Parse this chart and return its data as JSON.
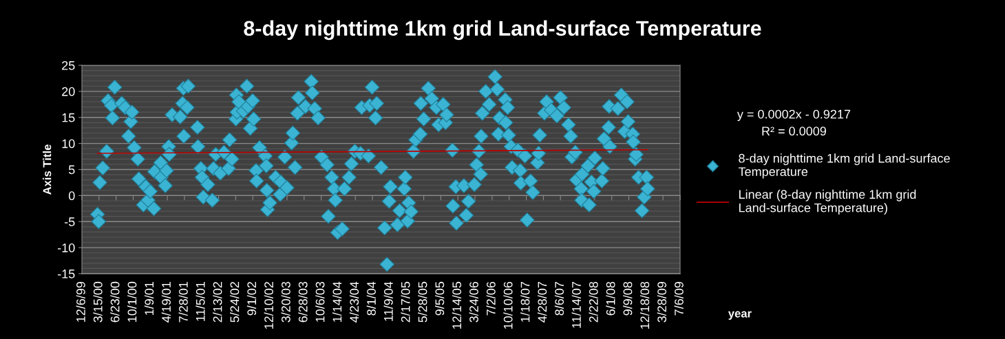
{
  "chart_data": {
    "type": "scatter",
    "title": "8-day nighttime 1km grid Land-surface Temperature",
    "xlabel": "year",
    "ylabel": "Axis Title",
    "annotations": [
      "y = 0.0002x - 0.9217",
      "R² = 0.0009"
    ],
    "xlim": [
      "1999-12-06",
      "2009-07-06"
    ],
    "xticks": [
      {
        "value": "1999-12-06",
        "label": "12/6/99"
      },
      {
        "value": "2000-03-15",
        "label": "3/15/00"
      },
      {
        "value": "2000-06-23",
        "label": "6/23/00"
      },
      {
        "value": "2000-10-01",
        "label": "10/1/00"
      },
      {
        "value": "2001-01-09",
        "label": "1/9/01"
      },
      {
        "value": "2001-04-19",
        "label": "4/19/01"
      },
      {
        "value": "2001-07-28",
        "label": "7/28/01"
      },
      {
        "value": "2001-11-05",
        "label": "11/5/01"
      },
      {
        "value": "2002-02-13",
        "label": "2/13/02"
      },
      {
        "value": "2002-05-24",
        "label": "5/24/02"
      },
      {
        "value": "2002-09-01",
        "label": "9/1/02"
      },
      {
        "value": "2002-12-10",
        "label": "12/10/02"
      },
      {
        "value": "2003-03-20",
        "label": "3/20/03"
      },
      {
        "value": "2003-06-28",
        "label": "6/28/03"
      },
      {
        "value": "2003-10-06",
        "label": "10/6/03"
      },
      {
        "value": "2004-01-14",
        "label": "1/14/04"
      },
      {
        "value": "2004-04-23",
        "label": "4/23/04"
      },
      {
        "value": "2004-08-01",
        "label": "8/1/04"
      },
      {
        "value": "2004-11-09",
        "label": "11/9/04"
      },
      {
        "value": "2005-02-17",
        "label": "2/17/05"
      },
      {
        "value": "2005-05-28",
        "label": "5/28/05"
      },
      {
        "value": "2005-09-05",
        "label": "9/5/05"
      },
      {
        "value": "2005-12-14",
        "label": "12/14/05"
      },
      {
        "value": "2006-03-24",
        "label": "3/24/06"
      },
      {
        "value": "2006-07-02",
        "label": "7/2/06"
      },
      {
        "value": "2006-10-10",
        "label": "10/10/06"
      },
      {
        "value": "2007-01-18",
        "label": "1/18/07"
      },
      {
        "value": "2007-04-28",
        "label": "4/28/07"
      },
      {
        "value": "2007-08-06",
        "label": "8/6/07"
      },
      {
        "value": "2007-11-14",
        "label": "11/14/07"
      },
      {
        "value": "2008-02-22",
        "label": "2/22/08"
      },
      {
        "value": "2008-06-01",
        "label": "6/1/08"
      },
      {
        "value": "2008-09-09",
        "label": "9/9/08"
      },
      {
        "value": "2008-12-18",
        "label": "12/18/08"
      },
      {
        "value": "2009-03-28",
        "label": "3/28/09"
      },
      {
        "value": "2009-07-06",
        "label": "7/6/09"
      }
    ],
    "ylim": [
      -15,
      25
    ],
    "yticks": [
      -15,
      -10,
      -5,
      0,
      5,
      10,
      15,
      20,
      25
    ],
    "grid": "y",
    "legend": "right",
    "series": [
      {
        "name": "8-day nighttime 1km grid Land-surface Temperature",
        "marker": "diamond",
        "color": "#3bb3d3",
        "x": [
          "2000-03-06",
          "2000-03-13",
          "2000-03-20",
          "2000-04-06",
          "2000-04-29",
          "2000-05-07",
          "2000-05-26",
          "2000-06-02",
          "2000-06-15",
          "2000-07-26",
          "2000-08-15",
          "2000-09-04",
          "2000-09-17",
          "2000-09-24",
          "2000-10-07",
          "2000-10-28",
          "2000-11-03",
          "2000-11-30",
          "2000-12-14",
          "2000-12-27",
          "2001-01-09",
          "2001-01-30",
          "2001-02-03",
          "2001-03-11",
          "2001-03-14",
          "2001-04-07",
          "2001-04-14",
          "2001-04-27",
          "2001-04-30",
          "2001-05-17",
          "2001-07-03",
          "2001-07-17",
          "2001-07-22",
          "2001-07-24",
          "2001-08-13",
          "2001-08-19",
          "2001-10-12",
          "2001-10-15",
          "2001-11-01",
          "2001-11-08",
          "2001-11-15",
          "2001-12-12",
          "2002-01-07",
          "2002-01-14",
          "2002-01-27",
          "2002-02-23",
          "2002-03-16",
          "2002-04-12",
          "2002-04-18",
          "2002-05-02",
          "2002-05-25",
          "2002-05-28",
          "2002-05-31",
          "2002-06-11",
          "2002-07-08",
          "2002-07-28",
          "2002-08-04",
          "2002-08-17",
          "2002-08-31",
          "2002-09-06",
          "2002-09-20",
          "2002-09-23",
          "2002-10-10",
          "2002-11-13",
          "2002-11-19",
          "2002-11-22",
          "2002-11-26",
          "2002-12-10",
          "2003-01-12",
          "2003-02-08",
          "2003-02-11",
          "2003-03-07",
          "2003-03-20",
          "2003-04-16",
          "2003-04-23",
          "2003-05-06",
          "2003-05-20",
          "2003-05-26",
          "2003-07-06",
          "2003-08-09",
          "2003-08-15",
          "2003-08-29",
          "2003-09-18",
          "2003-10-08",
          "2003-11-10",
          "2003-11-17",
          "2003-12-07",
          "2003-12-21",
          "2003-12-28",
          "2004-01-10",
          "2004-02-06",
          "2004-02-19",
          "2004-03-17",
          "2004-03-31",
          "2004-04-20",
          "2004-05-23",
          "2004-05-30",
          "2004-07-09",
          "2004-07-16",
          "2004-07-30",
          "2004-08-19",
          "2004-08-26",
          "2004-09-21",
          "2004-10-11",
          "2004-10-25",
          "2004-11-07",
          "2004-11-14",
          "2004-12-25",
          "2005-01-07",
          "2005-02-03",
          "2005-02-09",
          "2005-02-23",
          "2005-03-01",
          "2005-03-15",
          "2005-03-29",
          "2005-04-11",
          "2005-05-08",
          "2005-05-11",
          "2005-05-28",
          "2005-06-24",
          "2005-07-14",
          "2005-08-10",
          "2005-08-23",
          "2005-09-19",
          "2005-10-03",
          "2005-10-09",
          "2005-11-12",
          "2005-11-15",
          "2005-12-02",
          "2005-12-05",
          "2006-01-18",
          "2006-02-01",
          "2006-02-14",
          "2006-03-20",
          "2006-04-02",
          "2006-04-16",
          "2006-04-26",
          "2006-04-29",
          "2006-05-06",
          "2006-05-26",
          "2006-06-15",
          "2006-07-19",
          "2006-08-01",
          "2006-08-08",
          "2006-08-15",
          "2006-09-17",
          "2006-09-20",
          "2006-10-01",
          "2006-10-07",
          "2006-10-21",
          "2006-10-27",
          "2006-11-30",
          "2006-12-14",
          "2006-12-17",
          "2007-01-10",
          "2007-01-23",
          "2007-02-12",
          "2007-02-25",
          "2007-03-24",
          "2007-03-31",
          "2007-04-07",
          "2007-05-04",
          "2007-05-17",
          "2007-06-13",
          "2007-07-16",
          "2007-08-06",
          "2007-08-26",
          "2007-09-22",
          "2007-10-05",
          "2007-10-12",
          "2007-11-01",
          "2007-11-08",
          "2007-12-05",
          "2007-12-08",
          "2007-12-11",
          "2008-01-14",
          "2008-01-21",
          "2008-02-03",
          "2008-02-17",
          "2008-02-23",
          "2008-04-04",
          "2008-04-10",
          "2008-04-17",
          "2008-05-14",
          "2008-05-17",
          "2008-05-21",
          "2008-07-07",
          "2008-07-27",
          "2008-08-16",
          "2008-08-30",
          "2008-09-05",
          "2008-10-02",
          "2008-10-05",
          "2008-10-16",
          "2008-10-22",
          "2008-11-05",
          "2008-11-25",
          "2008-12-08",
          "2008-12-22",
          "2008-12-28"
        ],
        "values": [
          -3.6,
          -5.0,
          2.5,
          5.3,
          8.5,
          18.2,
          17.3,
          14.9,
          20.8,
          17.7,
          16.9,
          11.4,
          14.2,
          16.0,
          9.2,
          7.0,
          3.2,
          -1.8,
          1.7,
          -0.9,
          0.8,
          -2.5,
          4.6,
          6.3,
          3.5,
          1.9,
          4.8,
          9.4,
          7.9,
          15.5,
          15.1,
          17.7,
          20.6,
          11.4,
          16.9,
          21.0,
          13.1,
          9.4,
          5.2,
          3.5,
          -0.3,
          2.1,
          -0.9,
          5.2,
          7.9,
          4.3,
          8.3,
          5.2,
          10.7,
          7.0,
          14.7,
          19.3,
          16.0,
          18.0,
          16.2,
          21.0,
          17.1,
          12.9,
          18.2,
          14.7,
          4.8,
          2.8,
          9.2,
          7.6,
          5.7,
          1.0,
          -2.7,
          -1.4,
          3.5,
          0.2,
          2.6,
          7.4,
          1.5,
          10.1,
          12.0,
          5.4,
          15.8,
          18.8,
          17.1,
          21.9,
          19.7,
          16.7,
          14.9,
          7.4,
          5.9,
          -4.0,
          3.5,
          1.3,
          -0.9,
          -7.1,
          -6.4,
          1.3,
          3.5,
          6.1,
          8.5,
          8.1,
          16.9,
          7.6,
          17.3,
          20.8,
          14.9,
          17.7,
          5.4,
          -6.2,
          -13.2,
          -1.1,
          1.7,
          -5.6,
          -2.9,
          1.3,
          3.5,
          -4.9,
          -1.4,
          -3.1,
          8.5,
          10.7,
          11.8,
          17.7,
          14.7,
          20.6,
          18.6,
          16.9,
          13.6,
          17.5,
          14.0,
          15.5,
          8.7,
          -2.0,
          1.7,
          -5.3,
          1.9,
          -3.8,
          -1.1,
          2.1,
          5.9,
          8.5,
          4.1,
          11.4,
          15.8,
          20.0,
          17.5,
          22.8,
          20.4,
          11.8,
          14.9,
          18.4,
          14.0,
          16.9,
          11.6,
          9.4,
          5.4,
          8.7,
          4.8,
          2.4,
          7.6,
          -4.7,
          2.8,
          0.6,
          6.3,
          8.1,
          11.6,
          15.8,
          18.0,
          16.4,
          15.3,
          18.8,
          16.9,
          13.6,
          11.4,
          7.4,
          8.3,
          3.0,
          1.3,
          -0.9,
          4.1,
          5.7,
          -1.8,
          2.6,
          0.8,
          7.2,
          2.8,
          5.2,
          10.9,
          13.1,
          17.1,
          9.4,
          16.7,
          19.3,
          12.3,
          18.0,
          14.2,
          11.8,
          10.3,
          7.0,
          7.9,
          3.5,
          -2.9,
          -0.3,
          3.5,
          1.3
        ]
      },
      {
        "name": "Linear (8-day nighttime 1km grid Land-surface Temperature)",
        "type": "line",
        "line_style": "solid",
        "color": "#c00000",
        "x": [
          "2000-03-06",
          "2008-12-28"
        ],
        "values": [
          8.1,
          8.8
        ]
      }
    ]
  }
}
